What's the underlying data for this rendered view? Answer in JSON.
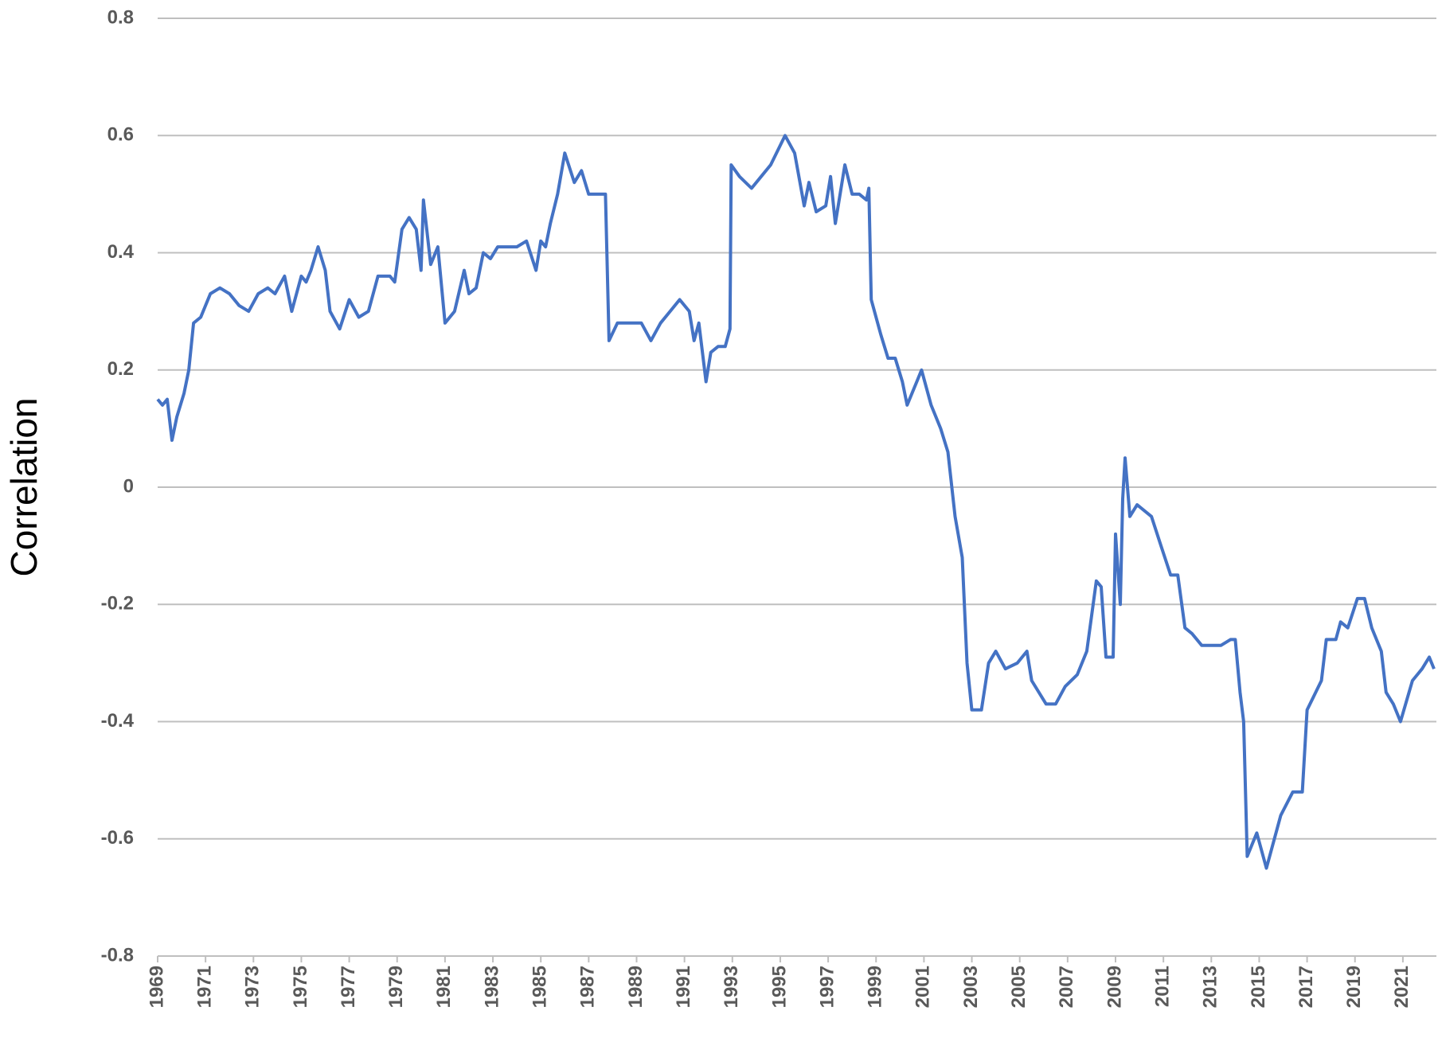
{
  "chart_data": {
    "type": "line",
    "y_label": "Correlation",
    "x": [
      1969.0,
      1969.2,
      1969.4,
      1969.6,
      1969.8,
      1970.1,
      1970.3,
      1970.5,
      1970.8,
      1971.2,
      1971.6,
      1972.0,
      1972.4,
      1972.8,
      1973.2,
      1973.6,
      1973.9,
      1974.3,
      1974.6,
      1974.8,
      1975.0,
      1975.2,
      1975.4,
      1975.7,
      1976.0,
      1976.2,
      1976.6,
      1977.0,
      1977.4,
      1977.8,
      1978.2,
      1978.5,
      1978.7,
      1978.9,
      1979.2,
      1979.5,
      1979.8,
      1980.0,
      1980.1,
      1980.4,
      1980.7,
      1981.0,
      1981.4,
      1981.8,
      1982.0,
      1982.3,
      1982.6,
      1982.9,
      1983.2,
      1983.6,
      1984.0,
      1984.4,
      1984.8,
      1985.0,
      1985.2,
      1985.4,
      1985.7,
      1986.0,
      1986.4,
      1986.7,
      1987.0,
      1987.3,
      1987.7,
      1987.85,
      1988.2,
      1988.5,
      1988.9,
      1989.2,
      1989.6,
      1990.0,
      1990.4,
      1990.8,
      1991.2,
      1991.4,
      1991.6,
      1991.9,
      1992.1,
      1992.4,
      1992.7,
      1992.9,
      1992.95,
      1993.3,
      1993.8,
      1994.2,
      1994.6,
      1995.2,
      1995.6,
      1996.0,
      1996.2,
      1996.5,
      1996.9,
      1997.1,
      1997.3,
      1997.7,
      1998.0,
      1998.3,
      1998.6,
      1998.7,
      1998.8,
      1999.2,
      1999.5,
      1999.8,
      2000.1,
      2000.3,
      2000.7,
      2000.9,
      2001.3,
      2001.7,
      2002.0,
      2002.3,
      2002.6,
      2002.8,
      2003.0,
      2003.4,
      2003.7,
      2004.0,
      2004.4,
      2004.9,
      2005.3,
      2005.5,
      2006.1,
      2006.5,
      2006.9,
      2007.4,
      2007.8,
      2008.2,
      2008.4,
      2008.6,
      2008.9,
      2009.0,
      2009.2,
      2009.3,
      2009.4,
      2009.6,
      2009.9,
      2010.5,
      2010.9,
      2011.3,
      2011.6,
      2011.9,
      2012.2,
      2012.6,
      2013.4,
      2013.8,
      2014.0,
      2014.2,
      2014.35,
      2014.5,
      2014.9,
      2015.3,
      2015.9,
      2016.4,
      2016.8,
      2017.0,
      2017.6,
      2017.8,
      2018.2,
      2018.4,
      2018.7,
      2019.1,
      2019.4,
      2019.7,
      2020.1,
      2020.3,
      2020.6,
      2020.9,
      2021.4,
      2021.8,
      2022.1,
      2022.3
    ],
    "values": [
      0.15,
      0.14,
      0.15,
      0.08,
      0.12,
      0.16,
      0.2,
      0.28,
      0.29,
      0.33,
      0.34,
      0.33,
      0.31,
      0.3,
      0.33,
      0.34,
      0.33,
      0.36,
      0.3,
      0.33,
      0.36,
      0.35,
      0.37,
      0.41,
      0.37,
      0.3,
      0.27,
      0.32,
      0.29,
      0.3,
      0.36,
      0.36,
      0.36,
      0.35,
      0.44,
      0.46,
      0.44,
      0.37,
      0.49,
      0.38,
      0.41,
      0.28,
      0.3,
      0.37,
      0.33,
      0.34,
      0.4,
      0.39,
      0.41,
      0.41,
      0.41,
      0.42,
      0.37,
      0.42,
      0.41,
      0.45,
      0.5,
      0.57,
      0.52,
      0.54,
      0.5,
      0.5,
      0.5,
      0.25,
      0.28,
      0.28,
      0.28,
      0.28,
      0.25,
      0.28,
      0.3,
      0.32,
      0.3,
      0.25,
      0.28,
      0.18,
      0.23,
      0.24,
      0.24,
      0.27,
      0.55,
      0.53,
      0.51,
      0.53,
      0.55,
      0.6,
      0.57,
      0.48,
      0.52,
      0.47,
      0.48,
      0.53,
      0.45,
      0.55,
      0.5,
      0.5,
      0.49,
      0.51,
      0.32,
      0.26,
      0.22,
      0.22,
      0.18,
      0.14,
      0.18,
      0.2,
      0.14,
      0.1,
      0.06,
      -0.05,
      -0.12,
      -0.3,
      -0.38,
      -0.38,
      -0.3,
      -0.28,
      -0.31,
      -0.3,
      -0.28,
      -0.33,
      -0.37,
      -0.37,
      -0.34,
      -0.32,
      -0.28,
      -0.16,
      -0.17,
      -0.29,
      -0.29,
      -0.08,
      -0.2,
      -0.02,
      0.05,
      -0.05,
      -0.03,
      -0.05,
      -0.1,
      -0.15,
      -0.15,
      -0.24,
      -0.25,
      -0.27,
      -0.27,
      -0.26,
      -0.26,
      -0.35,
      -0.4,
      -0.63,
      -0.59,
      -0.65,
      -0.56,
      -0.52,
      -0.52,
      -0.38,
      -0.33,
      -0.26,
      -0.26,
      -0.23,
      -0.24,
      -0.19,
      -0.19,
      -0.24,
      -0.28,
      -0.35,
      -0.37,
      -0.4,
      -0.33,
      -0.31,
      -0.29,
      -0.31
    ],
    "color": "#4472c4",
    "xlim": [
      1969,
      2022.4
    ],
    "xticks": [
      1969,
      1971,
      1973,
      1975,
      1977,
      1979,
      1981,
      1983,
      1985,
      1987,
      1989,
      1991,
      1993,
      1995,
      1997,
      1999,
      2001,
      2003,
      2005,
      2007,
      2009,
      2011,
      2013,
      2015,
      2017,
      2019,
      2021
    ],
    "ylim": [
      -0.8,
      0.8
    ],
    "yticks": [
      -0.8,
      -0.6,
      -0.4,
      -0.2,
      0,
      0.2,
      0.4,
      0.6,
      0.8
    ],
    "grid": true
  }
}
